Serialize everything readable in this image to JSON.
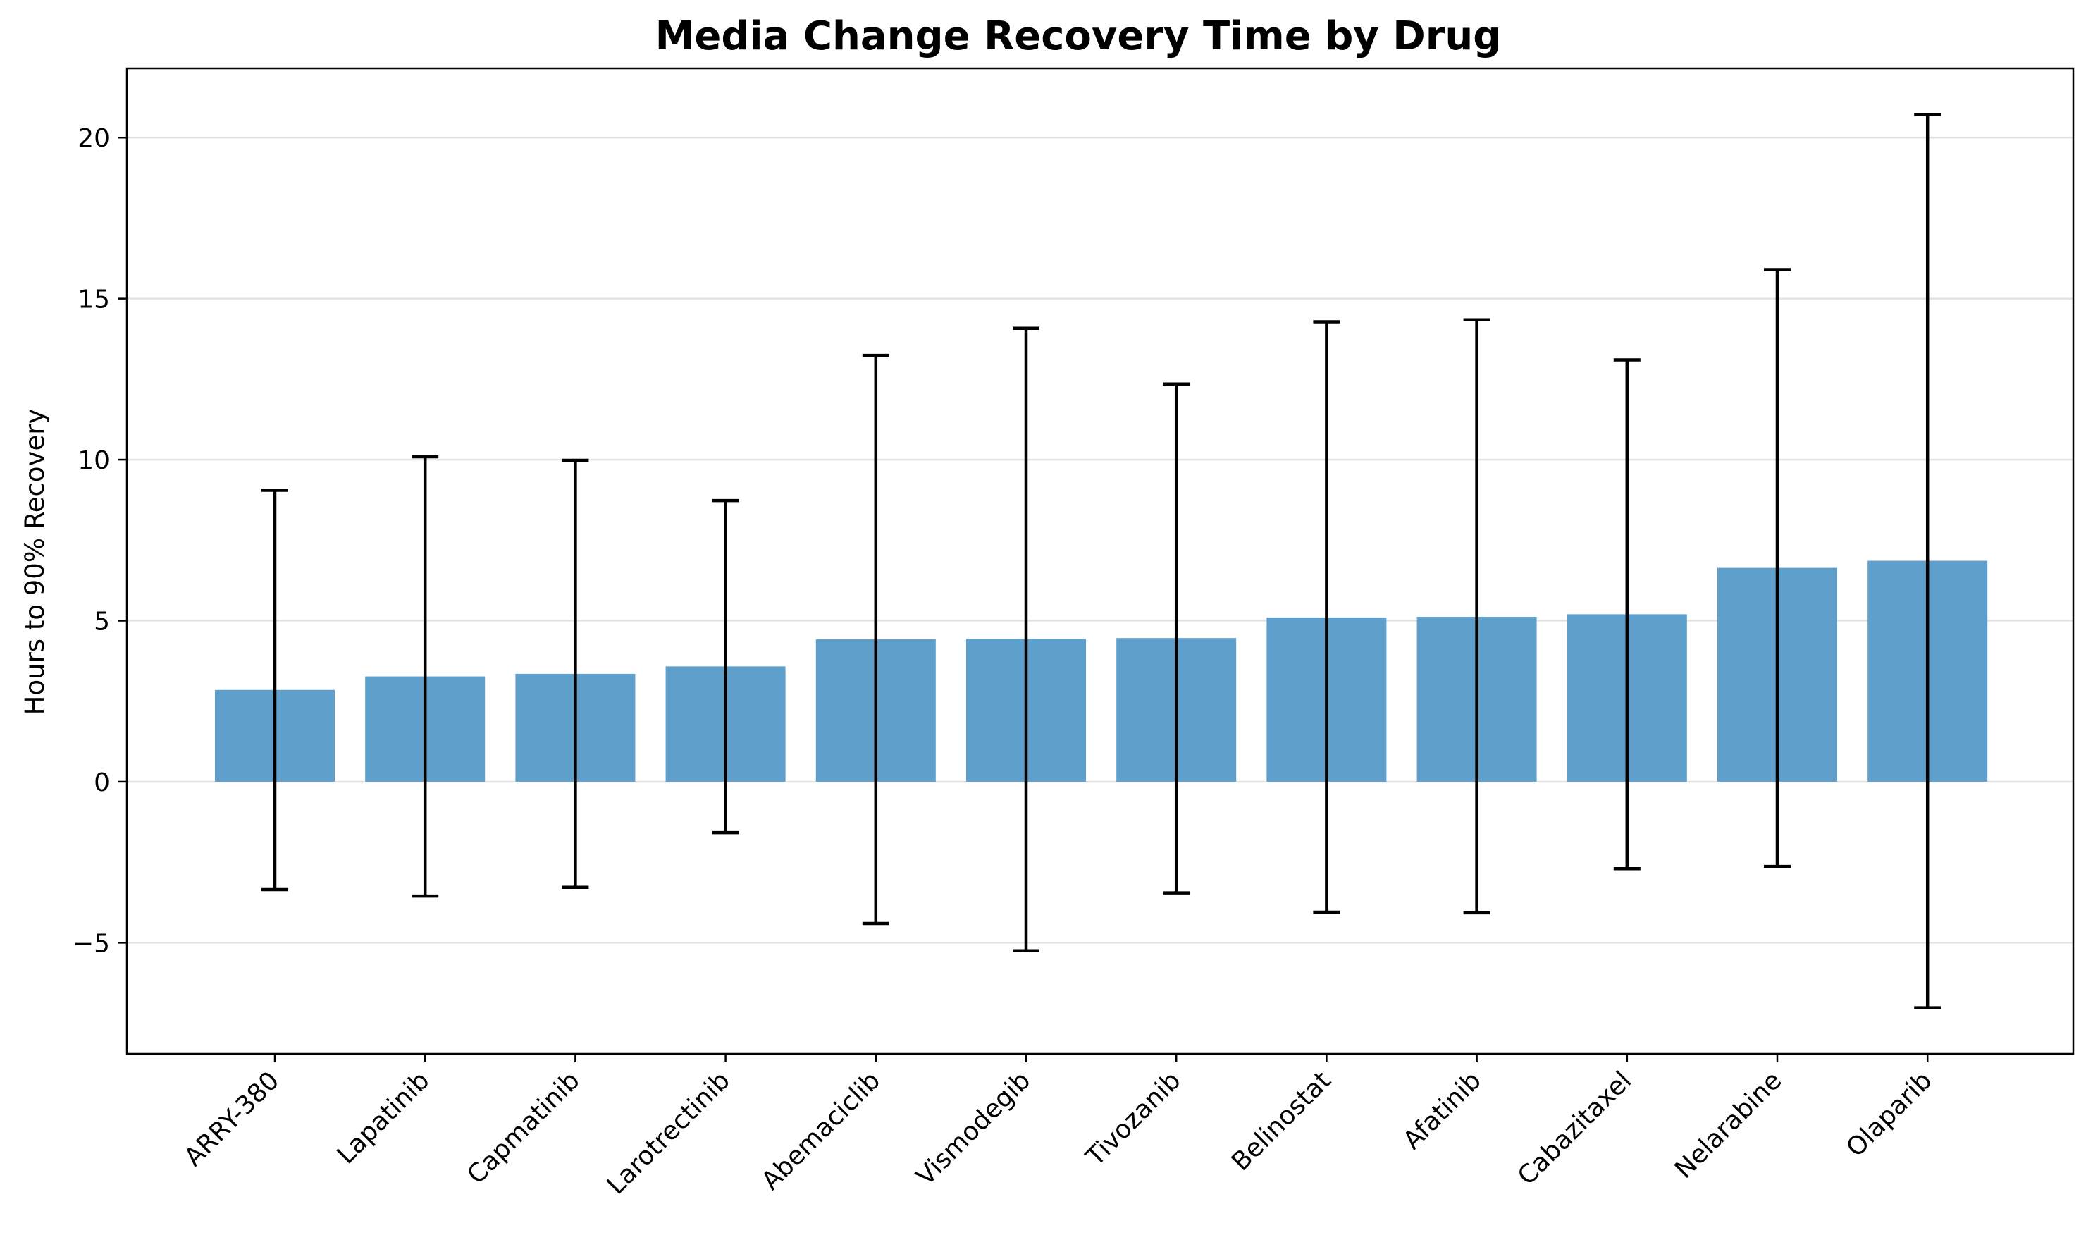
{
  "chart_data": {
    "type": "bar",
    "title": "Media Change Recovery Time by Drug",
    "xlabel": "",
    "ylabel": "Hours to 90% Recovery",
    "categories": [
      "ARRY-380",
      "Lapatinib",
      "Capmatinib",
      "Larotrectinib",
      "Abemaciclib",
      "Vismodegib",
      "Tivozanib",
      "Belinostat",
      "Afatinib",
      "Cabazitaxel",
      "Nelarabine",
      "Olaparib"
    ],
    "values": [
      2.85,
      3.27,
      3.35,
      3.58,
      4.42,
      4.44,
      4.46,
      5.1,
      5.12,
      5.2,
      6.64,
      6.86
    ],
    "error_low": [
      -3.35,
      -3.55,
      -3.28,
      -1.58,
      -4.4,
      -5.25,
      -3.45,
      -4.05,
      -4.07,
      -2.7,
      -2.63,
      -7.02
    ],
    "error_high": [
      9.05,
      10.09,
      9.98,
      8.73,
      13.24,
      14.08,
      12.35,
      14.28,
      14.34,
      13.1,
      15.9,
      20.72
    ],
    "y_ticks": [
      -5,
      0,
      5,
      10,
      15,
      20
    ],
    "ylim": [
      -8.45,
      22.15
    ],
    "grid": "horizontal",
    "legend": "none",
    "colors": {
      "bar": "#5f9fcb",
      "error": "#000000",
      "grid": "#e3e3e3"
    }
  }
}
